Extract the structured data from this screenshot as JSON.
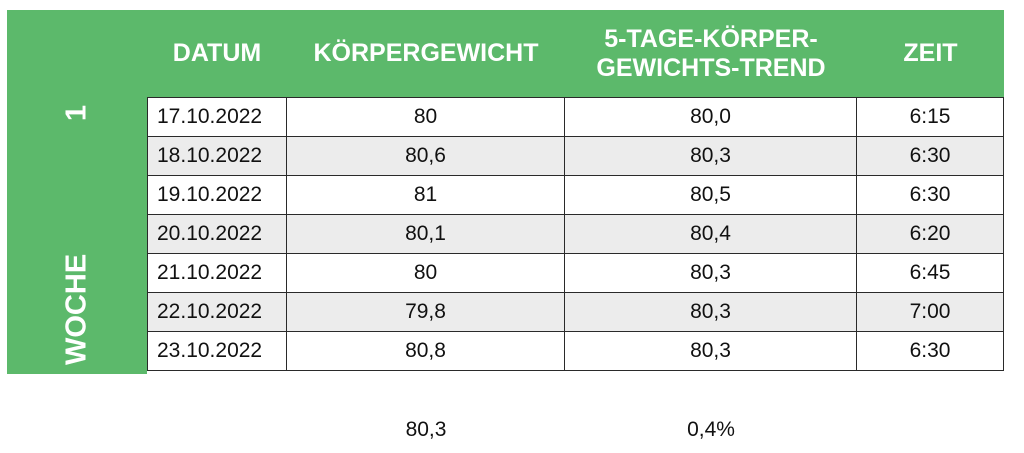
{
  "columns": {
    "datum": "DATUM",
    "gewicht": "KÖRPERGEWICHT",
    "trend_line1": "5-TAGE-KÖRPER-",
    "trend_line2": "GEWICHTS-TREND",
    "zeit": "ZEIT"
  },
  "week_label": {
    "word": "WOCHE",
    "number": "1"
  },
  "rows": [
    {
      "datum": "17.10.2022",
      "gewicht": "80",
      "trend": "80,0",
      "zeit": "6:15"
    },
    {
      "datum": "18.10.2022",
      "gewicht": "80,6",
      "trend": "80,3",
      "zeit": "6:30"
    },
    {
      "datum": "19.10.2022",
      "gewicht": "81",
      "trend": "80,5",
      "zeit": "6:30"
    },
    {
      "datum": "20.10.2022",
      "gewicht": "80,1",
      "trend": "80,4",
      "zeit": "6:20"
    },
    {
      "datum": "21.10.2022",
      "gewicht": "80",
      "trend": "80,3",
      "zeit": "6:45"
    },
    {
      "datum": "22.10.2022",
      "gewicht": "79,8",
      "trend": "80,3",
      "zeit": "7:00"
    },
    {
      "datum": "23.10.2022",
      "gewicht": "80,8",
      "trend": "80,3",
      "zeit": "6:30"
    }
  ],
  "summary": {
    "average_weight": "80,3",
    "change_percent": "0,4%"
  },
  "colors": {
    "header_green": "#5cb96b",
    "alt_row": "#ececec"
  }
}
